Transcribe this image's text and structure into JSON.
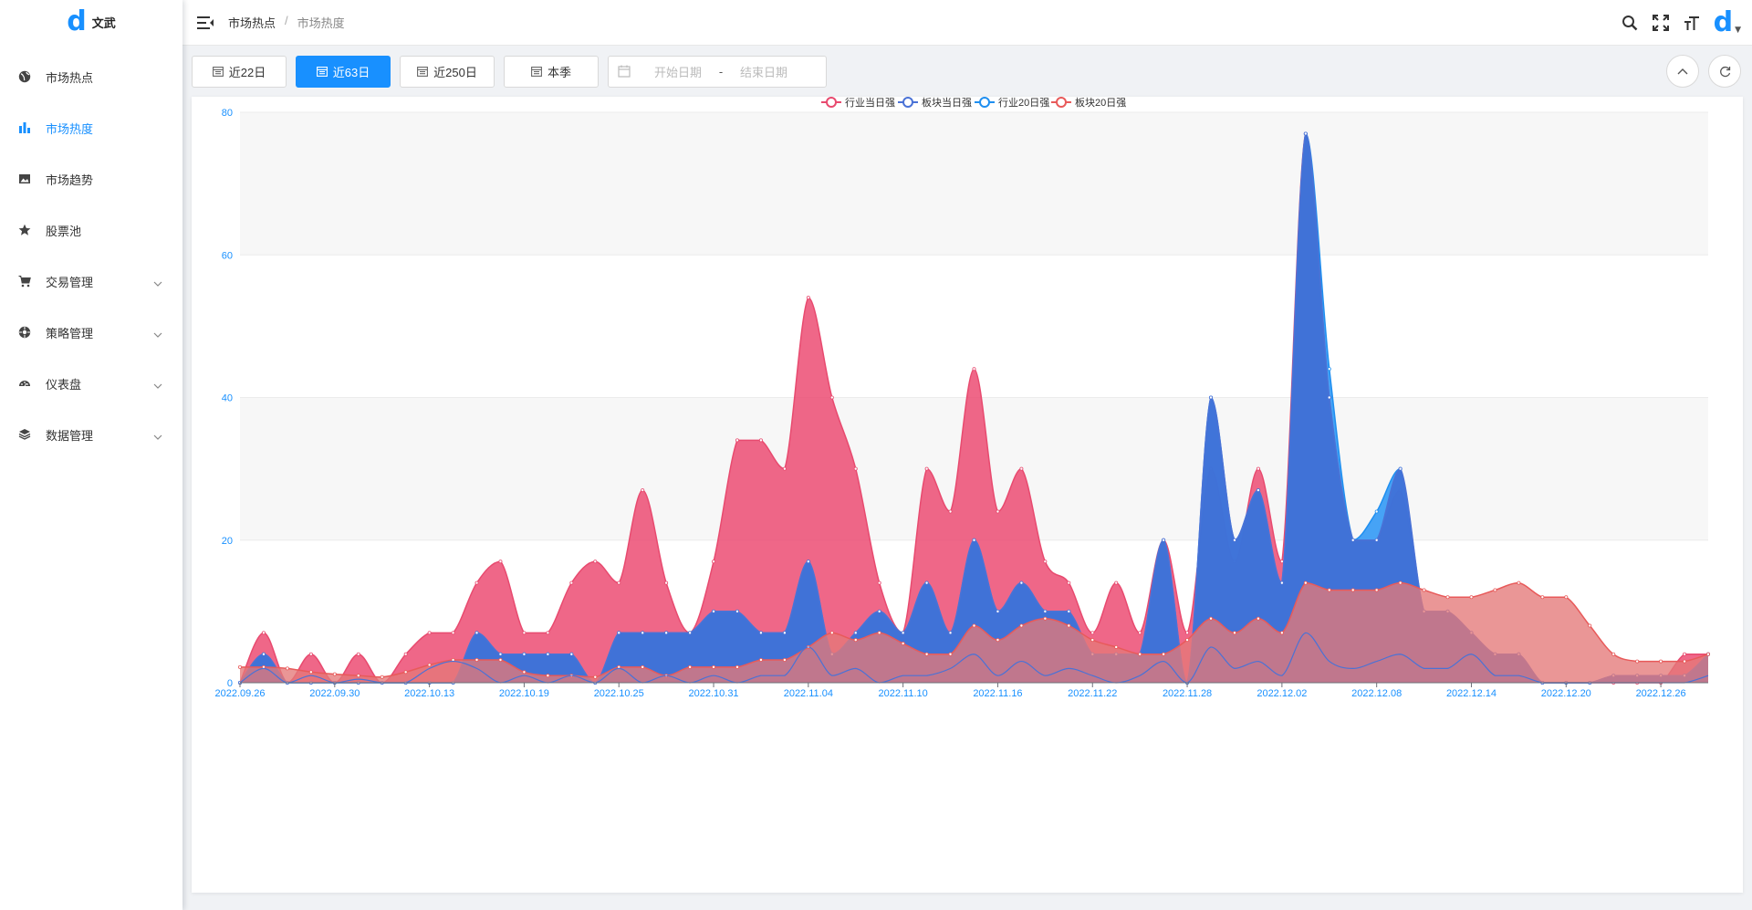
{
  "app": {
    "logo_text": "文武",
    "logo_mark": "d",
    "avatar_mark": "d"
  },
  "sidebar": {
    "items": [
      {
        "label": "市场热点",
        "icon": "globe-icon"
      },
      {
        "label": "市场热度",
        "icon": "bar-chart-icon",
        "active": true
      },
      {
        "label": "市场趋势",
        "icon": "picture-icon"
      },
      {
        "label": "股票池",
        "icon": "star-icon"
      },
      {
        "label": "交易管理",
        "icon": "cart-icon",
        "expandable": true
      },
      {
        "label": "策略管理",
        "icon": "compass-icon",
        "expandable": true
      },
      {
        "label": "仪表盘",
        "icon": "dashboard-icon",
        "expandable": true
      },
      {
        "label": "数据管理",
        "icon": "layers-icon",
        "expandable": true
      }
    ]
  },
  "header": {
    "breadcrumb": [
      "市场热点",
      "市场热度"
    ],
    "separator": "/",
    "icons": [
      "search-icon",
      "fullscreen-icon",
      "font-size-icon"
    ]
  },
  "toolbar": {
    "buttons": [
      {
        "label": "近22日",
        "active": false
      },
      {
        "label": "近63日",
        "active": true
      },
      {
        "label": "近250日",
        "active": false
      },
      {
        "label": "本季",
        "active": false
      }
    ],
    "start_placeholder": "开始日期",
    "end_placeholder": "结束日期",
    "range_separator": "-"
  },
  "colors": {
    "accent": "#1890ff",
    "ind_day": "#e84a6f",
    "sec_day": "#4a72d6",
    "ind_20": "#1f8ff0",
    "sec_20": "#e85a5a",
    "axis_label": "#1890ff"
  },
  "chart_data": {
    "type": "area",
    "legend_position": "top-center",
    "grid": true,
    "ylim": [
      0,
      80
    ],
    "yticks": [
      0,
      20,
      40,
      60,
      80
    ],
    "x": [
      "2022.09.26",
      "2022.09.27",
      "2022.09.28",
      "2022.09.29",
      "2022.09.30",
      "2022.10.10",
      "2022.10.11",
      "2022.10.12",
      "2022.10.13",
      "2022.10.14",
      "2022.10.17",
      "2022.10.18",
      "2022.10.19",
      "2022.10.20",
      "2022.10.21",
      "2022.10.24",
      "2022.10.25",
      "2022.10.26",
      "2022.10.27",
      "2022.10.28",
      "2022.10.31",
      "2022.11.01",
      "2022.11.02",
      "2022.11.03",
      "2022.11.04",
      "2022.11.07",
      "2022.11.08",
      "2022.11.09",
      "2022.11.10",
      "2022.11.11",
      "2022.11.14",
      "2022.11.15",
      "2022.11.16",
      "2022.11.17",
      "2022.11.18",
      "2022.11.21",
      "2022.11.22",
      "2022.11.23",
      "2022.11.24",
      "2022.11.25",
      "2022.11.28",
      "2022.11.29",
      "2022.11.30",
      "2022.12.01",
      "2022.12.02",
      "2022.12.05",
      "2022.12.06",
      "2022.12.07",
      "2022.12.08",
      "2022.12.09",
      "2022.12.12",
      "2022.12.13",
      "2022.12.14",
      "2022.12.15",
      "2022.12.16",
      "2022.12.19",
      "2022.12.20",
      "2022.12.21",
      "2022.12.22",
      "2022.12.23",
      "2022.12.26",
      "2022.12.27",
      "2022.12.28"
    ],
    "xtick_labels": [
      "2022.09.26",
      "2022.09.30",
      "2022.10.13",
      "2022.10.19",
      "2022.10.25",
      "2022.10.31",
      "2022.11.04",
      "2022.11.10",
      "2022.11.16",
      "2022.11.22",
      "2022.11.28",
      "2022.12.02",
      "2022.12.08",
      "2022.12.14",
      "2022.12.20",
      "2022.12.26"
    ],
    "series": [
      {
        "name": "行业当日强",
        "color": "#e84a6f",
        "fill": "rgba(236,70,110,0.82)",
        "values": [
          0,
          7,
          0,
          4,
          0,
          4,
          0,
          4,
          7,
          7,
          14,
          17,
          7,
          7,
          14,
          17,
          14,
          27,
          14,
          7,
          17,
          34,
          34,
          30,
          54,
          40,
          30,
          14,
          7,
          30,
          24,
          44,
          24,
          30,
          17,
          14,
          7,
          14,
          7,
          20,
          7,
          30,
          17,
          30,
          17,
          77,
          40,
          20,
          20,
          27,
          10,
          10,
          7,
          4,
          4,
          0,
          0,
          0,
          0,
          0,
          0,
          4,
          4
        ]
      },
      {
        "name": "板块当日强",
        "color": "#4a72d6",
        "fill": "rgba(64,112,214,0.92)",
        "values": [
          0,
          4,
          0,
          0,
          0,
          0,
          0,
          0,
          0,
          0,
          7,
          4,
          4,
          4,
          4,
          0,
          7,
          7,
          7,
          7,
          10,
          10,
          7,
          7,
          17,
          4,
          7,
          10,
          7,
          14,
          7,
          20,
          10,
          14,
          10,
          10,
          4,
          4,
          4,
          20,
          0,
          40,
          20,
          27,
          14,
          77,
          40,
          20,
          20,
          30,
          10,
          10,
          7,
          4,
          4,
          0,
          0,
          0,
          1,
          1,
          1,
          1,
          4
        ]
      },
      {
        "name": "行业20日强",
        "color": "#1f8ff0",
        "fill": "rgba(30,144,245,0.82)",
        "values": [
          0,
          4,
          0,
          0,
          0,
          0,
          0,
          0,
          0,
          0,
          7,
          4,
          4,
          4,
          4,
          0,
          7,
          7,
          7,
          7,
          10,
          10,
          7,
          7,
          17,
          4,
          7,
          10,
          7,
          14,
          7,
          20,
          10,
          14,
          10,
          10,
          4,
          4,
          4,
          20,
          0,
          40,
          20,
          27,
          14,
          77,
          44,
          20,
          24,
          30,
          10,
          10,
          7,
          4,
          4,
          0,
          0,
          0,
          1,
          1,
          1,
          1,
          4
        ]
      },
      {
        "name": "板块20日强",
        "color": "#e85a5a",
        "fill": "rgba(228,120,120,0.78)",
        "values": [
          2.2,
          2.2,
          2,
          1.5,
          1.2,
          1,
          0.8,
          1.5,
          2.5,
          3.2,
          3.2,
          3.2,
          1.5,
          1,
          1,
          0.8,
          2.2,
          2.2,
          1,
          2.2,
          2.2,
          2.2,
          3.2,
          3.2,
          5,
          7,
          6,
          7,
          5.5,
          4,
          4,
          8,
          6,
          8,
          9,
          8,
          6,
          5,
          4,
          4,
          6,
          9,
          7,
          9,
          7,
          14,
          13,
          13,
          13,
          14,
          13,
          12,
          12,
          13,
          14,
          12,
          12,
          8,
          4,
          3,
          3,
          3,
          4
        ]
      }
    ],
    "overlay_lines": [
      {
        "color": "#4a72d6",
        "values": [
          0,
          2,
          0,
          1,
          0,
          0.5,
          0,
          0,
          2,
          3,
          2,
          0,
          1,
          0,
          1,
          0,
          2,
          0,
          1,
          0,
          1,
          0,
          1,
          1,
          5,
          1,
          2,
          0,
          1,
          1,
          2,
          4,
          1,
          3,
          1,
          2,
          1,
          0,
          1,
          3,
          0,
          5,
          2,
          3,
          1,
          7,
          3,
          2,
          3,
          4,
          2,
          2,
          4,
          1,
          1,
          0,
          0,
          0,
          0,
          0,
          0,
          0,
          1
        ]
      }
    ]
  }
}
